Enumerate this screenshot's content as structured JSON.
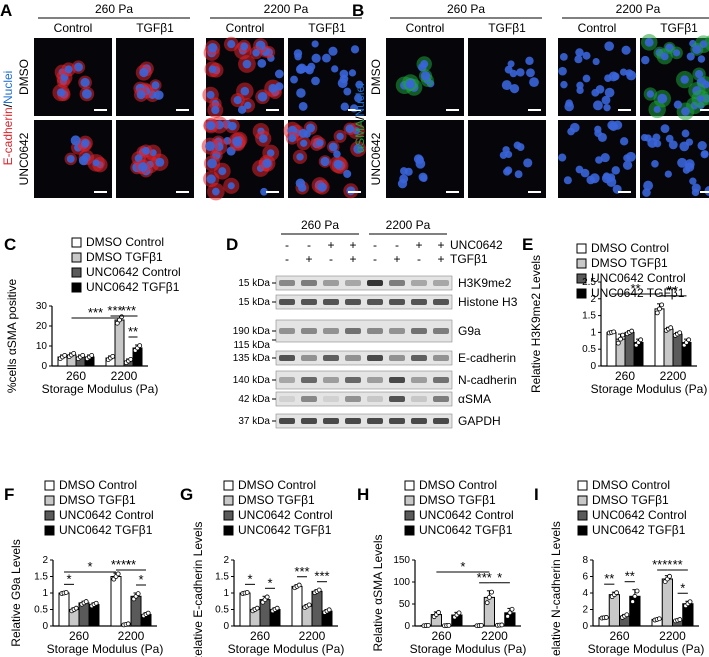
{
  "panels": {
    "A": {
      "letter": "A",
      "pa_low": "260 Pa",
      "pa_high": "2200 Pa",
      "col_labels": [
        "Control",
        "TGFβ1",
        "Control",
        "TGFβ1"
      ],
      "row_labels": [
        "DMSO",
        "UNC0642"
      ],
      "stain_main": "E-cadherin",
      "stain_sep": "/",
      "stain_nuc": "Nuclei",
      "colors": {
        "stain": "#e0242c",
        "nuclei": "#1f6fd1"
      }
    },
    "B": {
      "letter": "B",
      "pa_low": "260 Pa",
      "pa_high": "2200 Pa",
      "col_labels": [
        "Control",
        "TGFβ1",
        "Control",
        "TGFβ1"
      ],
      "row_labels": [
        "DMSO",
        "UNC0642"
      ],
      "stain_main": "αSMA",
      "stain_sep": "/",
      "stain_nuc": "Nuclei",
      "colors": {
        "stain": "#1fa33a",
        "nuclei": "#1f6fd1"
      }
    },
    "D": {
      "letter": "D",
      "pa_low": "260 Pa",
      "pa_high": "2200 Pa",
      "unc_label": "UNC0642",
      "tgf_label": "TGFβ1",
      "unc_signs": [
        "-",
        "-",
        "+",
        "+",
        "-",
        "-",
        "+",
        "+"
      ],
      "tgf_signs": [
        "-",
        "+",
        "-",
        "+",
        "-",
        "+",
        "-",
        "+"
      ],
      "bands": [
        {
          "kda": "15 kDa",
          "name": "H3K9me2"
        },
        {
          "kda": "15 kDa",
          "name": "Histone H3"
        },
        {
          "kda": "190 kDa",
          "kda2": "115 kDa",
          "name": "G9a"
        },
        {
          "kda": "135 kDa",
          "name": "E-cadherin"
        },
        {
          "kda": "140 kDa",
          "name": "N-cadherin"
        },
        {
          "kda": "42 kDa",
          "name": "αSMA"
        },
        {
          "kda": "37 kDa",
          "name": "GAPDH"
        }
      ]
    }
  },
  "legend": [
    "DMSO Control",
    "DMSO TGFβ1",
    "UNC0642 Control",
    "UNC0642 TGFβ1"
  ],
  "colors": {
    "dmso_control": "#ffffff",
    "dmso_tgf": "#c8c8c8",
    "unc_control": "#5a5a5a",
    "unc_tgf": "#000000"
  },
  "chart_data": [
    {
      "panel": "C",
      "type": "bar",
      "ylabel": "%cells αSMA positive",
      "xlabel": "Storage Modulus (Pa)",
      "categories": [
        "260",
        "2200"
      ],
      "ylim": [
        0,
        30
      ],
      "yticks": [
        0,
        10,
        20,
        30
      ],
      "series": [
        {
          "name": "DMSO Control",
          "values": [
            4.5,
            4.0
          ],
          "errors": [
            1,
            1
          ]
        },
        {
          "name": "DMSO TGFβ1",
          "values": [
            5.5,
            23
          ],
          "errors": [
            1,
            2
          ]
        },
        {
          "name": "UNC0642 Control",
          "values": [
            4.5,
            2.5
          ],
          "errors": [
            1,
            1
          ]
        },
        {
          "name": "UNC0642 TGFβ1",
          "values": [
            4.5,
            9
          ],
          "errors": [
            1,
            1.5
          ]
        }
      ],
      "significance": [
        {
          "text": "***",
          "from": [
            0,
            1
          ],
          "to": [
            1,
            1
          ]
        },
        {
          "text": "***",
          "from": [
            1,
            0
          ],
          "to": [
            1,
            1
          ]
        },
        {
          "text": "***",
          "from": [
            1,
            1
          ],
          "to": [
            1,
            3
          ]
        },
        {
          "text": "**",
          "from": [
            1,
            2
          ],
          "to": [
            1,
            3
          ]
        }
      ]
    },
    {
      "panel": "E",
      "type": "bar",
      "ylabel": "Relative H3K9me2 Levels",
      "xlabel": "Storage Modulus (Pa)",
      "categories": [
        "260",
        "2200"
      ],
      "ylim": [
        0,
        2.5
      ],
      "yticks": [
        0.0,
        0.5,
        1.0,
        1.5,
        2.0,
        2.5
      ],
      "series": [
        {
          "name": "DMSO Control",
          "values": [
            1.0,
            1.7
          ],
          "errors": [
            0.02,
            0.15
          ]
        },
        {
          "name": "DMSO TGFβ1",
          "values": [
            0.8,
            1.1
          ],
          "errors": [
            0.15,
            0.05
          ]
        },
        {
          "name": "UNC0642 Control",
          "values": [
            1.0,
            0.95
          ],
          "errors": [
            0.05,
            0.05
          ]
        },
        {
          "name": "UNC0642 TGFβ1",
          "values": [
            0.7,
            0.7
          ],
          "errors": [
            0.1,
            0.1
          ]
        }
      ],
      "significance": [
        {
          "text": "**",
          "from": [
            0,
            0
          ],
          "to": [
            1,
            0
          ]
        },
        {
          "text": "**",
          "from": [
            1,
            0
          ],
          "to": [
            1,
            3
          ]
        },
        {
          "text": "*",
          "from": [
            1,
            0
          ],
          "to": [
            1,
            2
          ]
        }
      ]
    },
    {
      "panel": "F",
      "type": "bar",
      "ylabel": "Relative G9a Levels",
      "xlabel": "Storage Modulus (Pa)",
      "categories": [
        "260",
        "2200"
      ],
      "ylim": [
        0,
        2.0
      ],
      "yticks": [
        0.0,
        0.5,
        1.0,
        1.5,
        2.0
      ],
      "series": [
        {
          "name": "DMSO Control",
          "values": [
            1.0,
            1.5
          ],
          "errors": [
            0.02,
            0.1
          ]
        },
        {
          "name": "DMSO TGFβ1",
          "values": [
            0.5,
            0.05
          ],
          "errors": [
            0.05,
            0.02
          ]
        },
        {
          "name": "UNC0642 Control",
          "values": [
            0.7,
            0.9
          ],
          "errors": [
            0.05,
            0.1
          ]
        },
        {
          "name": "UNC0642 TGFβ1",
          "values": [
            0.65,
            0.35
          ],
          "errors": [
            0.05,
            0.05
          ]
        }
      ],
      "significance": [
        {
          "text": "*",
          "from": [
            0,
            0
          ],
          "to": [
            0,
            1
          ]
        },
        {
          "text": "*",
          "from": [
            0,
            0
          ],
          "to": [
            1,
            0
          ]
        },
        {
          "text": "**",
          "from": [
            1,
            0
          ],
          "to": [
            1,
            3
          ]
        },
        {
          "text": "****",
          "from": [
            1,
            0
          ],
          "to": [
            1,
            1
          ]
        },
        {
          "text": "*",
          "from": [
            1,
            2
          ],
          "to": [
            1,
            3
          ]
        }
      ]
    },
    {
      "panel": "G",
      "type": "bar",
      "ylabel": "Relative E-cadherin Levels",
      "xlabel": "Storage Modulus (Pa)",
      "categories": [
        "260",
        "2200"
      ],
      "ylim": [
        0,
        2.0
      ],
      "yticks": [
        0.0,
        0.5,
        1.0,
        1.5,
        2.0
      ],
      "series": [
        {
          "name": "DMSO Control",
          "values": [
            1.0,
            1.2
          ],
          "errors": [
            0.02,
            0.05
          ]
        },
        {
          "name": "DMSO TGFβ1",
          "values": [
            0.5,
            0.6
          ],
          "errors": [
            0.05,
            0.05
          ]
        },
        {
          "name": "UNC0642 Control",
          "values": [
            0.8,
            1.05
          ],
          "errors": [
            0.1,
            0.05
          ]
        },
        {
          "name": "UNC0642 TGFβ1",
          "values": [
            0.5,
            0.45
          ],
          "errors": [
            0.05,
            0.05
          ]
        }
      ],
      "significance": [
        {
          "text": "*",
          "from": [
            0,
            0
          ],
          "to": [
            0,
            1
          ]
        },
        {
          "text": "*",
          "from": [
            0,
            2
          ],
          "to": [
            0,
            3
          ]
        },
        {
          "text": "***",
          "from": [
            1,
            0
          ],
          "to": [
            1,
            1
          ]
        },
        {
          "text": "***",
          "from": [
            1,
            2
          ],
          "to": [
            1,
            3
          ]
        }
      ]
    },
    {
      "panel": "H",
      "type": "bar",
      "ylabel": "Relative αSMA Levels",
      "xlabel": "Storage Modulus (Pa)",
      "categories": [
        "260",
        "2200"
      ],
      "ylim": [
        0,
        150
      ],
      "yticks": [
        0,
        50,
        100,
        150
      ],
      "series": [
        {
          "name": "DMSO Control",
          "values": [
            1,
            1
          ],
          "errors": [
            0.5,
            0.5
          ]
        },
        {
          "name": "DMSO TGFβ1",
          "values": [
            26,
            65
          ],
          "errors": [
            6,
            15
          ]
        },
        {
          "name": "UNC0642 Control",
          "values": [
            1,
            2
          ],
          "errors": [
            0.5,
            0.5
          ]
        },
        {
          "name": "UNC0642 TGFβ1",
          "values": [
            25,
            30
          ],
          "errors": [
            6,
            10
          ]
        }
      ],
      "significance": [
        {
          "text": "*",
          "from": [
            0,
            1
          ],
          "to": [
            1,
            1
          ]
        },
        {
          "text": "***",
          "from": [
            1,
            0
          ],
          "to": [
            1,
            1
          ]
        },
        {
          "text": "*",
          "from": [
            1,
            1
          ],
          "to": [
            1,
            3
          ]
        }
      ]
    },
    {
      "panel": "I",
      "type": "bar",
      "ylabel": "Relative N-cadherin Levels",
      "xlabel": "Storage Modulus (Pa)",
      "categories": [
        "260",
        "2200"
      ],
      "ylim": [
        0,
        8
      ],
      "yticks": [
        0,
        2,
        4,
        6,
        8
      ],
      "series": [
        {
          "name": "DMSO Control",
          "values": [
            1.0,
            0.8
          ],
          "errors": [
            0.05,
            0.1
          ]
        },
        {
          "name": "DMSO TGFβ1",
          "values": [
            3.8,
            5.7
          ],
          "errors": [
            0.3,
            0.4
          ]
        },
        {
          "name": "UNC0642 Control",
          "values": [
            1.2,
            0.7
          ],
          "errors": [
            0.2,
            0.1
          ]
        },
        {
          "name": "UNC0642 TGFβ1",
          "values": [
            3.6,
            2.7
          ],
          "errors": [
            0.8,
            0.3
          ]
        }
      ],
      "significance": [
        {
          "text": "**",
          "from": [
            0,
            0
          ],
          "to": [
            0,
            1
          ]
        },
        {
          "text": "**",
          "from": [
            0,
            2
          ],
          "to": [
            0,
            3
          ]
        },
        {
          "text": "****",
          "from": [
            1,
            0
          ],
          "to": [
            1,
            1
          ]
        },
        {
          "text": "**",
          "from": [
            1,
            1
          ],
          "to": [
            1,
            3
          ]
        },
        {
          "text": "*",
          "from": [
            1,
            2
          ],
          "to": [
            1,
            3
          ]
        }
      ]
    }
  ]
}
